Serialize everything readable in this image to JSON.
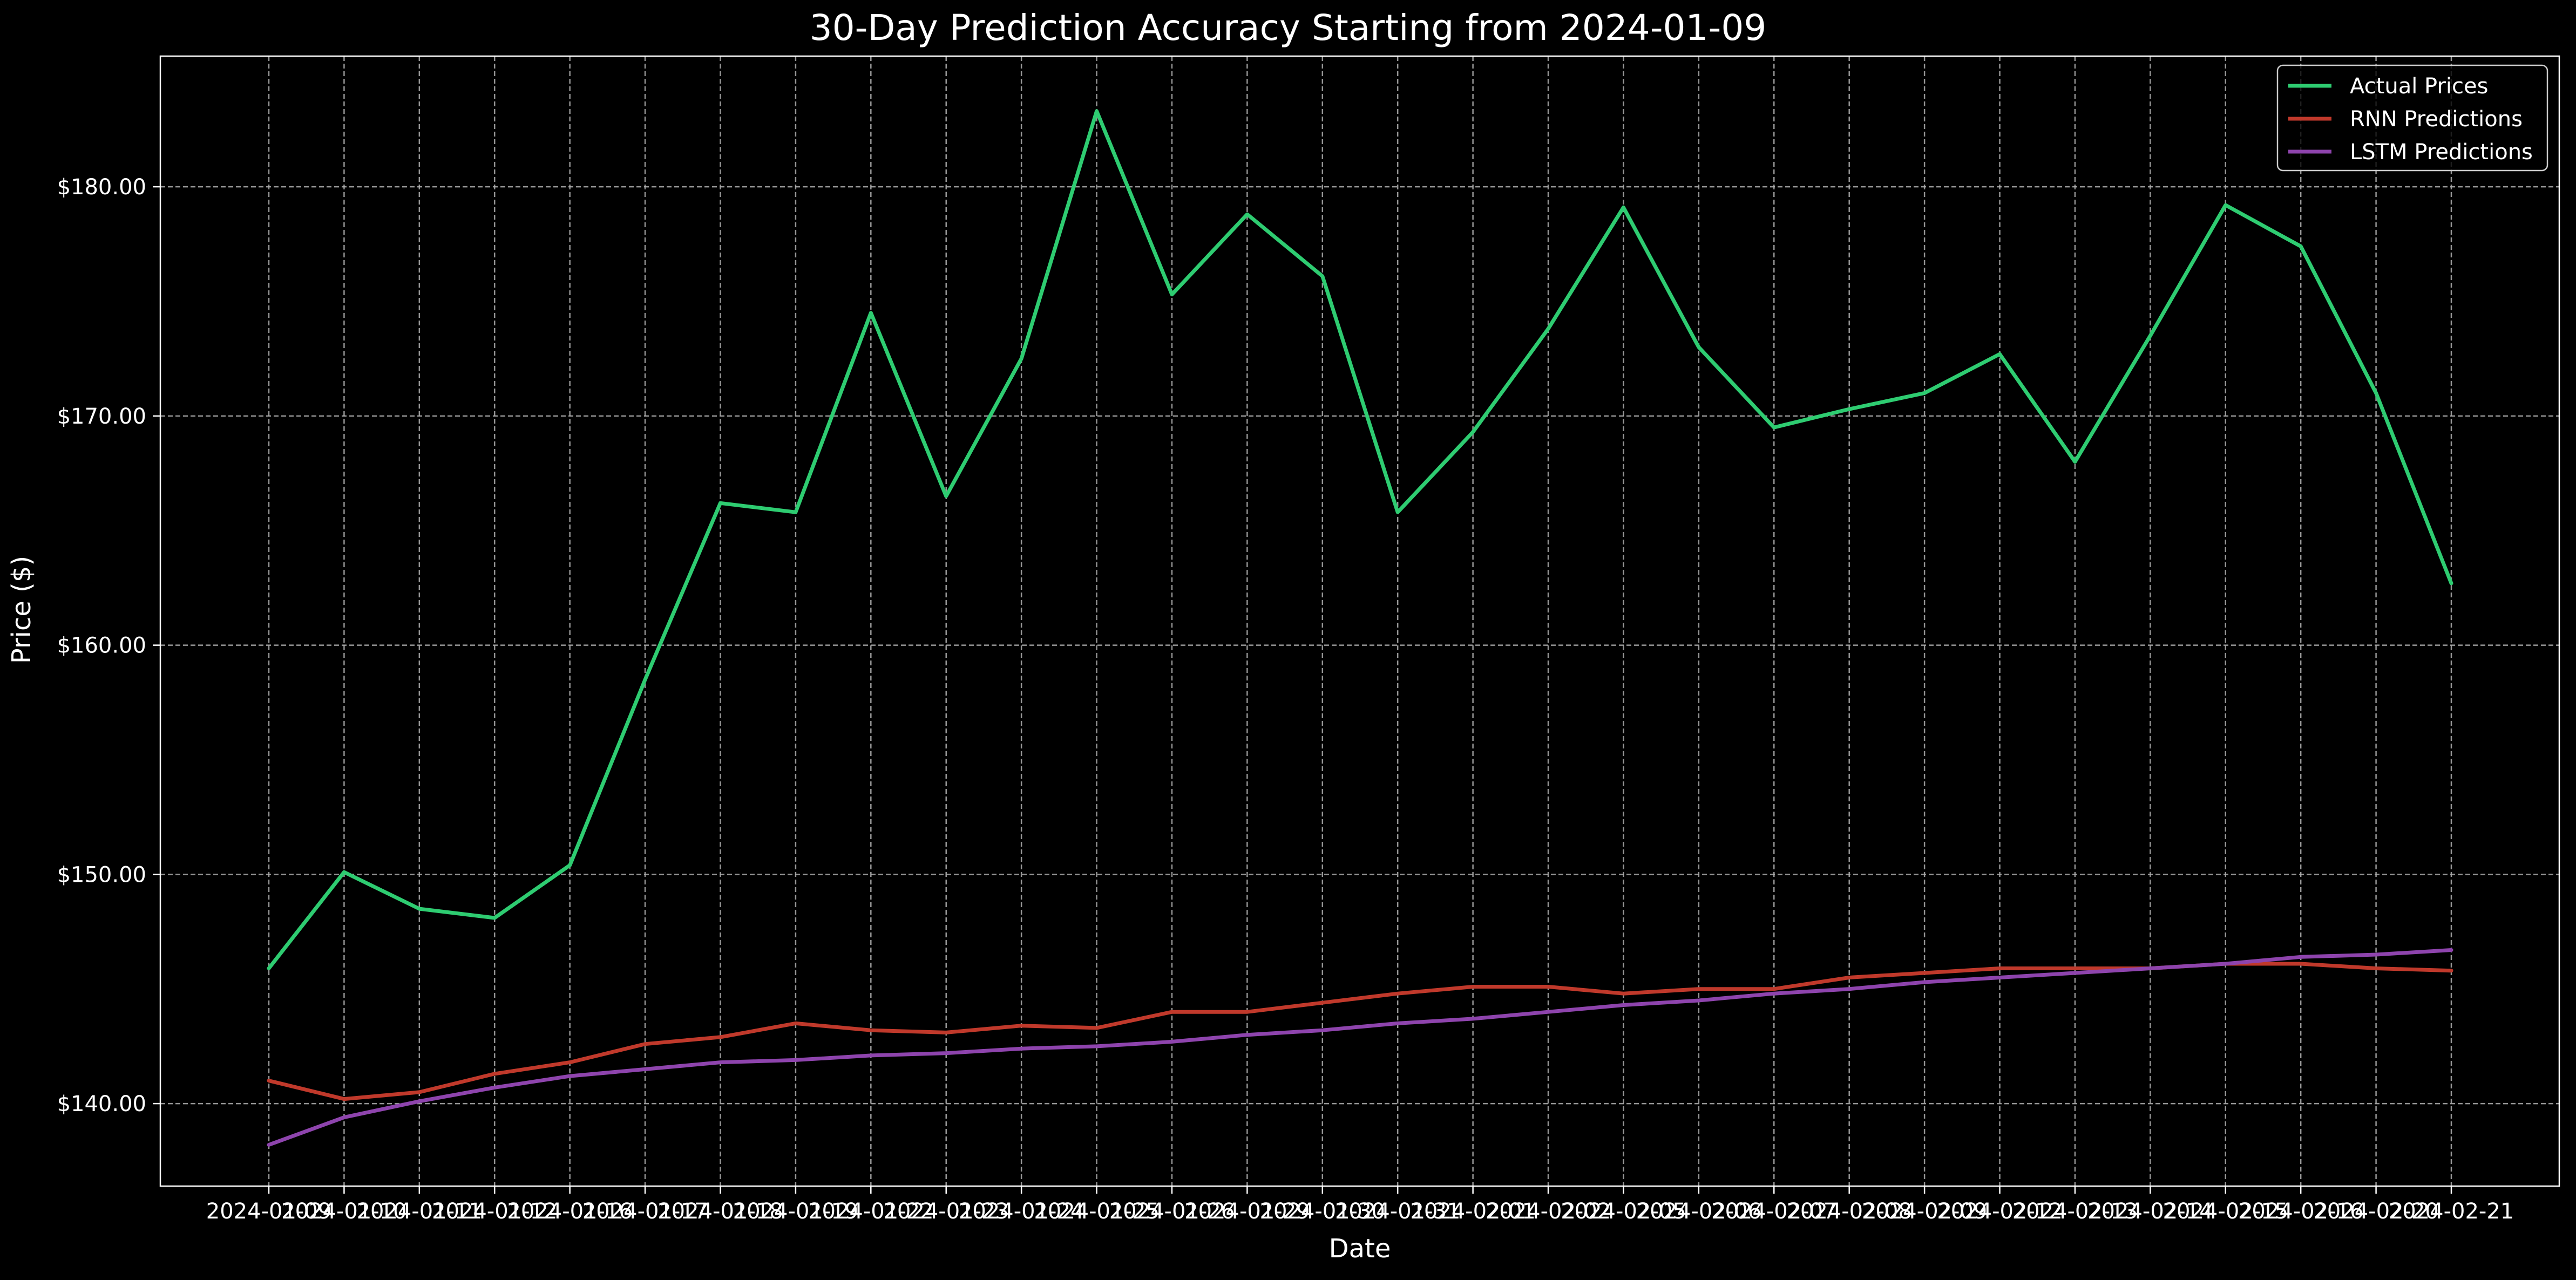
{
  "colors": {
    "background": "#000000",
    "text": "#ffffff",
    "grid": "#b0b0b0",
    "axes": "#ffffff"
  },
  "chart_data": {
    "type": "line",
    "title": "30-Day Prediction Accuracy Starting from 2024-01-09",
    "xlabel": "Date",
    "ylabel": "Price ($)",
    "ylim": [
      136.4,
      185.7
    ],
    "grid": true,
    "legend_position": "top-right",
    "x": [
      "2024-01-09",
      "2024-01-10",
      "2024-01-11",
      "2024-01-12",
      "2024-01-16",
      "2024-01-17",
      "2024-01-18",
      "2024-01-19",
      "2024-01-22",
      "2024-01-23",
      "2024-01-24",
      "2024-01-25",
      "2024-01-26",
      "2024-01-29",
      "2024-01-30",
      "2024-01-31",
      "2024-02-01",
      "2024-02-02",
      "2024-02-05",
      "2024-02-06",
      "2024-02-07",
      "2024-02-08",
      "2024-02-09",
      "2024-02-12",
      "2024-02-13",
      "2024-02-14",
      "2024-02-15",
      "2024-02-16",
      "2024-02-20",
      "2024-02-21"
    ],
    "x_tick_labels": [
      "2024-01-09",
      "2024-01-10",
      "2024-01-11",
      "2024-01-12",
      "2024-01-16",
      "2024-01-17",
      "2024-01-18",
      "2024-01-19",
      "2024-01-22",
      "2024-01-23",
      "2024-01-24",
      "2024-01-25",
      "2024-01-26",
      "2024-01-29",
      "2024-01-30",
      "2024-01-31",
      "2024-02-01",
      "2024-02-02",
      "2024-02-05",
      "2024-02-06",
      "2024-02-07",
      "2024-02-08",
      "2024-02-09",
      "2024-02-12",
      "2024-02-13",
      "2024-02-14",
      "2024-02-15",
      "2024-02-16",
      "2024-02-20",
      "2024-02-21"
    ],
    "y_ticks": [
      140,
      150,
      160,
      170,
      180
    ],
    "y_tick_labels": [
      "$140.00",
      "$150.00",
      "$160.00",
      "$170.00",
      "$180.00"
    ],
    "series": [
      {
        "name": "Actual Prices",
        "color": "#2ecc71",
        "values": [
          145.9,
          150.1,
          148.5,
          148.1,
          150.4,
          158.5,
          166.2,
          165.8,
          174.5,
          166.5,
          172.5,
          183.3,
          175.3,
          178.8,
          176.1,
          165.8,
          169.3,
          173.8,
          179.1,
          173.0,
          169.5,
          170.3,
          171.0,
          172.7,
          168.0,
          173.5,
          179.2,
          177.4,
          171.0,
          162.7
        ]
      },
      {
        "name": "RNN Predictions",
        "color": "#c0392b",
        "values": [
          141.0,
          140.2,
          140.5,
          141.3,
          141.8,
          142.6,
          142.9,
          143.5,
          143.2,
          143.1,
          143.4,
          143.3,
          144.0,
          144.0,
          144.4,
          144.8,
          145.1,
          145.1,
          144.8,
          145.0,
          145.0,
          145.5,
          145.7,
          145.9,
          145.9,
          145.9,
          146.1,
          146.1,
          145.9,
          145.8
        ]
      },
      {
        "name": "LSTM Predictions",
        "color": "#8e44ad",
        "values": [
          138.2,
          139.4,
          140.1,
          140.7,
          141.2,
          141.5,
          141.8,
          141.9,
          142.1,
          142.2,
          142.4,
          142.5,
          142.7,
          143.0,
          143.2,
          143.5,
          143.7,
          144.0,
          144.3,
          144.5,
          144.8,
          145.0,
          145.3,
          145.5,
          145.7,
          145.9,
          146.1,
          146.4,
          146.5,
          146.7
        ]
      }
    ]
  }
}
